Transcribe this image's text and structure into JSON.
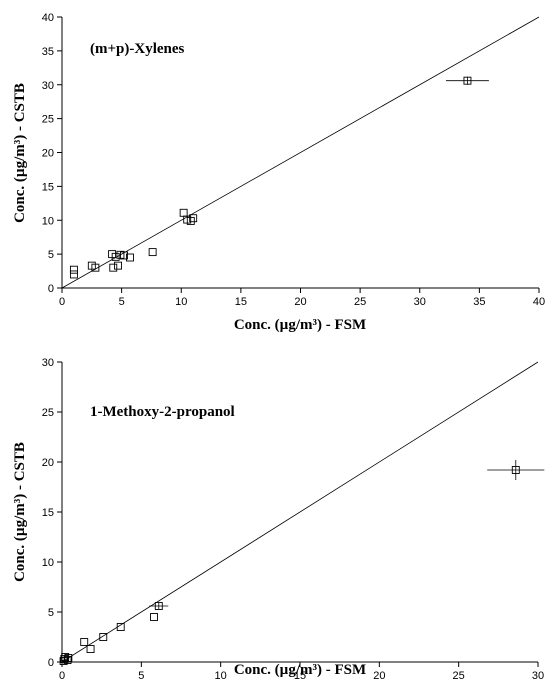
{
  "chart_data": [
    {
      "type": "scatter",
      "title": "(m+p)-Xylenes",
      "xlabel": "Conc. (µg/m³) - FSM",
      "ylabel": "Conc. (µg/m³) - CSTB",
      "xlim": [
        0,
        40
      ],
      "ylim": [
        0,
        40
      ],
      "xticks": [
        0,
        5,
        10,
        15,
        20,
        25,
        30,
        35,
        40
      ],
      "yticks": [
        0,
        5,
        10,
        15,
        20,
        25,
        30,
        35,
        40
      ],
      "reference_line": "y = x",
      "grid": false,
      "marker": "open-square",
      "points": [
        {
          "x": 1.0,
          "y": 2.7
        },
        {
          "x": 1.0,
          "y": 2.0
        },
        {
          "x": 2.5,
          "y": 3.3
        },
        {
          "x": 2.8,
          "y": 3.0
        },
        {
          "x": 4.2,
          "y": 5.0
        },
        {
          "x": 4.3,
          "y": 3.0
        },
        {
          "x": 4.5,
          "y": 4.6
        },
        {
          "x": 4.7,
          "y": 3.3
        },
        {
          "x": 4.9,
          "y": 4.9
        },
        {
          "x": 5.2,
          "y": 4.8
        },
        {
          "x": 5.7,
          "y": 4.5
        },
        {
          "x": 7.6,
          "y": 5.3
        },
        {
          "x": 10.2,
          "y": 11.1
        },
        {
          "x": 10.5,
          "y": 10.1
        },
        {
          "x": 10.8,
          "y": 9.9
        },
        {
          "x": 11.0,
          "y": 10.3
        },
        {
          "x": 34.0,
          "y": 30.6,
          "xerr": 1.8,
          "yerr": 0.6
        }
      ]
    },
    {
      "type": "scatter",
      "title": "1-Methoxy-2-propanol",
      "xlabel": "Conc. (µg/m³) - FSM",
      "ylabel": "Conc. (µg/m³) - CSTB",
      "xlim": [
        0,
        30
      ],
      "ylim": [
        0,
        30
      ],
      "xticks": [
        0,
        5,
        10,
        15,
        20,
        25,
        30
      ],
      "yticks": [
        0,
        5,
        10,
        15,
        20,
        25,
        30
      ],
      "reference_line": "y = x",
      "grid": false,
      "marker": "open-square",
      "points": [
        {
          "x": 0.1,
          "y": 0.1
        },
        {
          "x": 0.15,
          "y": 0.3
        },
        {
          "x": 0.2,
          "y": 0.5
        },
        {
          "x": 0.35,
          "y": 0.2
        },
        {
          "x": 0.4,
          "y": 0.4
        },
        {
          "x": 1.4,
          "y": 2.0
        },
        {
          "x": 1.8,
          "y": 1.3
        },
        {
          "x": 2.6,
          "y": 2.5
        },
        {
          "x": 3.7,
          "y": 3.5
        },
        {
          "x": 5.8,
          "y": 4.5
        },
        {
          "x": 6.1,
          "y": 5.6,
          "xerr": 0.6,
          "yerr": 0.3
        },
        {
          "x": 28.6,
          "y": 19.2,
          "xerr": 1.8,
          "yerr": 1.0
        }
      ]
    }
  ]
}
